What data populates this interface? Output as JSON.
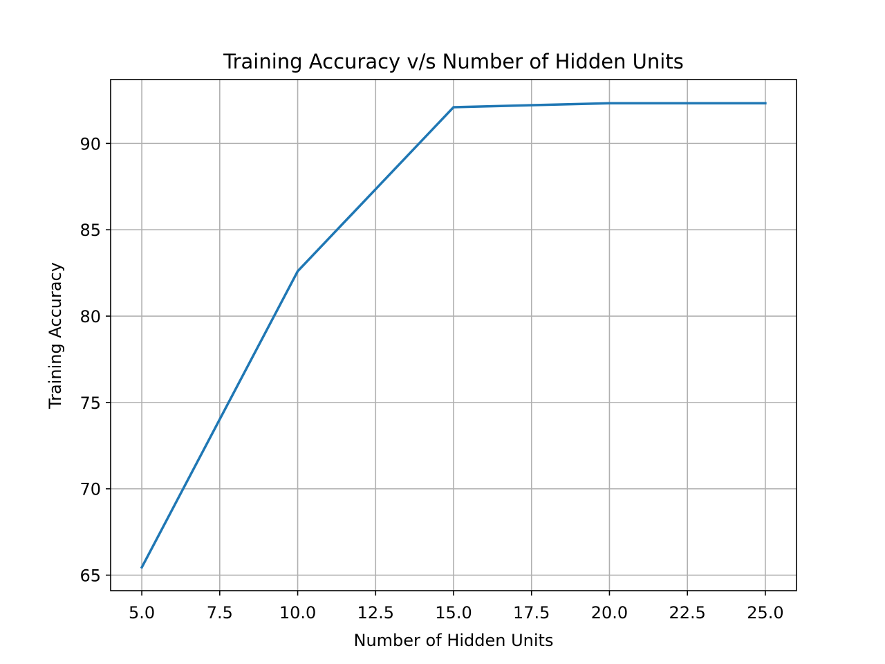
{
  "chart_data": {
    "type": "line",
    "title": "Training Accuracy v/s Number of Hidden Units",
    "xlabel": "Number of Hidden Units",
    "ylabel": "Training Accuracy",
    "xlim": [
      4.0,
      26.0
    ],
    "ylim": [
      64.1,
      93.7
    ],
    "xticks": [
      5.0,
      7.5,
      10.0,
      12.5,
      15.0,
      17.5,
      20.0,
      22.5,
      25.0
    ],
    "xtick_labels": [
      "5.0",
      "7.5",
      "10.0",
      "12.5",
      "15.0",
      "17.5",
      "20.0",
      "22.5",
      "25.0"
    ],
    "yticks": [
      65,
      70,
      75,
      80,
      85,
      90
    ],
    "ytick_labels": [
      "65",
      "70",
      "75",
      "80",
      "85",
      "90"
    ],
    "grid": true,
    "series": [
      {
        "color": "#1f77b4",
        "x": [
          5,
          10,
          15,
          20,
          25
        ],
        "y": [
          65.45,
          82.6,
          92.1,
          92.33,
          92.33
        ]
      }
    ]
  }
}
